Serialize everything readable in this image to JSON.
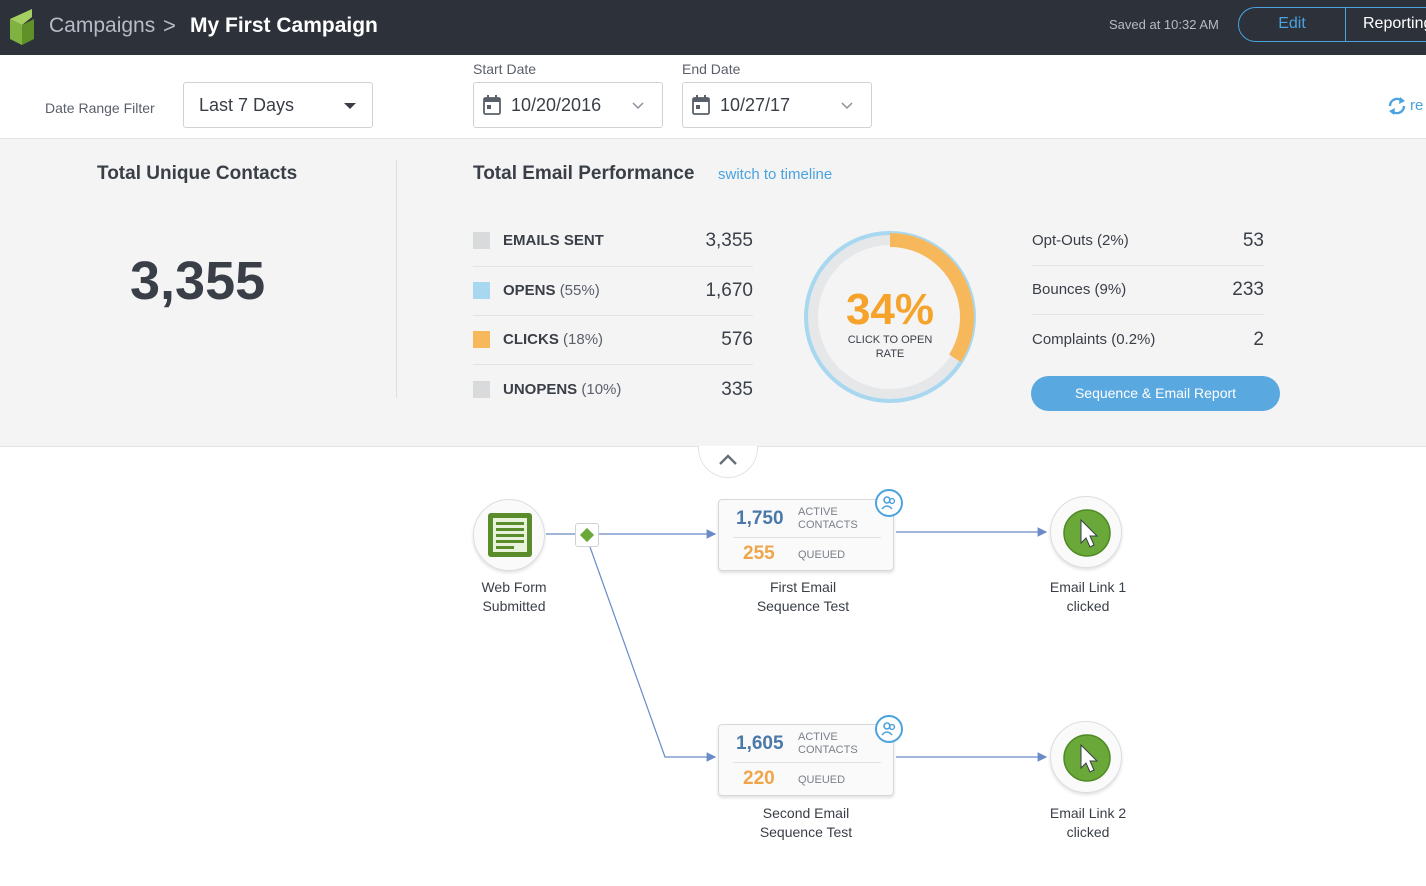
{
  "header": {
    "breadcrumb_root": "Campaigns",
    "breadcrumb_sep": ">",
    "campaign_name": "My First Campaign",
    "saved_status": "Saved at 10:32 AM",
    "edit_label": "Edit",
    "reporting_label": "Reporting"
  },
  "filters": {
    "date_range_label": "Date Range Filter",
    "date_range_value": "Last 7 Days",
    "start_label": "Start Date",
    "start_value": "10/20/2016",
    "end_label": "End Date",
    "end_value": "10/27/17",
    "refresh_label": "re"
  },
  "stats": {
    "unique_title": "Total Unique Contacts",
    "unique_count": "3,355",
    "perf_title": "Total Email Performance",
    "switch_link": "switch to timeline",
    "metrics": [
      {
        "name": "EMAILS SENT",
        "pct": "",
        "value": "3,355",
        "color": "#d9dadc"
      },
      {
        "name": "OPENS",
        "pct": "(55%)",
        "value": "1,670",
        "color": "#a8d8f0"
      },
      {
        "name": "CLICKS",
        "pct": "(18%)",
        "value": "576",
        "color": "#f7b85c"
      },
      {
        "name": "UNOPENS",
        "pct": "(10%)",
        "value": "335",
        "color": "#d9dadc"
      }
    ],
    "donut": {
      "percent_label": "34%",
      "caption_line1": "CLICK TO OPEN",
      "caption_line2": "RATE",
      "orange_fraction": 0.34,
      "blue_fraction": 1.0,
      "orange_color": "#f7b85c",
      "blue_color": "#a8d8f0"
    },
    "side": [
      {
        "name": "Opt-Outs (2%)",
        "value": "53"
      },
      {
        "name": "Bounces (9%)",
        "value": "233"
      },
      {
        "name": "Complaints (0.2%)",
        "value": "2"
      }
    ],
    "report_button": "Sequence & Email Report"
  },
  "flow": {
    "trigger": {
      "label_line1": "Web Form",
      "label_line2": "Submitted",
      "icon": "web-form-icon"
    },
    "sequences": [
      {
        "active_count": "1,750",
        "active_label_line1": "ACTIVE",
        "active_label_line2": "CONTACTS",
        "queued_count": "255",
        "queued_label": "QUEUED",
        "label_line1": "First Email",
        "label_line2": "Sequence Test"
      },
      {
        "active_count": "1,605",
        "active_label_line1": "ACTIVE",
        "active_label_line2": "CONTACTS",
        "queued_count": "220",
        "queued_label": "QUEUED",
        "label_line1": "Second Email",
        "label_line2": "Sequence Test"
      }
    ],
    "goals": [
      {
        "label_line1": "Email Link 1",
        "label_line2": "clicked",
        "icon": "cursor-click-icon"
      },
      {
        "label_line1": "Email Link 2",
        "label_line2": "clicked",
        "icon": "cursor-click-icon"
      }
    ]
  }
}
